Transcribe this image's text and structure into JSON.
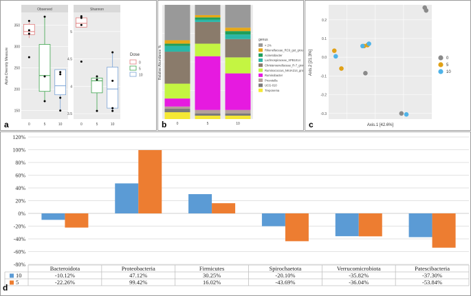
{
  "panels": {
    "a": "a",
    "b": "b",
    "c": "c",
    "d": "d"
  },
  "chart_data": [
    {
      "id": "a",
      "type": "box",
      "ylabel": "Alpha Diversity Measure",
      "legend": {
        "title": "Dose",
        "entries": [
          "0",
          "5",
          "10"
        ],
        "colors": [
          "#e07a7a",
          "#3aa34a",
          "#7aa3d6"
        ],
        "position": "right"
      },
      "facets": [
        {
          "title": "Observed",
          "ylim": [
            130,
            380
          ],
          "yticks": [
            150,
            200,
            250,
            300,
            350
          ],
          "categories": [
            "0",
            "5",
            "10"
          ],
          "boxes": [
            {
              "q1": 328,
              "median": 335,
              "q3": 352,
              "min": 320,
              "max": 358
            },
            {
              "q1": 195,
              "median": 232,
              "q3": 305,
              "min": 172,
              "max": 370
            },
            {
              "q1": 187,
              "median": 208,
              "q3": 246,
              "min": 152,
              "max": 246
            }
          ],
          "points": [
            [
              0,
              360
            ],
            [
              0,
              338
            ],
            [
              0,
              330
            ],
            [
              0,
              275
            ],
            [
              1,
              370
            ],
            [
              1,
              230
            ],
            [
              1,
              172
            ],
            [
              2,
              240
            ],
            [
              2,
              235
            ],
            [
              2,
              180
            ],
            [
              2,
              150
            ]
          ]
        },
        {
          "title": "Shannon",
          "ylim": [
            3.4,
            5.35
          ],
          "yticks": [
            3.5,
            4.0,
            4.5,
            5.0
          ],
          "categories": [
            "0",
            "5",
            "10"
          ],
          "boxes": [
            {
              "q1": 5.08,
              "median": 5.15,
              "q3": 5.25,
              "min": 5.08,
              "max": 5.28
            },
            {
              "q1": 3.88,
              "median": 4.1,
              "q3": 4.15,
              "min": 3.55,
              "max": 4.2
            },
            {
              "q1": 3.6,
              "median": 3.95,
              "q3": 4.35,
              "min": 3.55,
              "max": 4.62
            }
          ],
          "points": [
            [
              0,
              5.28
            ],
            [
              0,
              5.25
            ],
            [
              0,
              5.12
            ],
            [
              0,
              4.45
            ],
            [
              1,
              4.18
            ],
            [
              1,
              4.12
            ],
            [
              1,
              3.55
            ],
            [
              2,
              4.62
            ],
            [
              2,
              4.1
            ],
            [
              2,
              3.6
            ],
            [
              2,
              3.55
            ]
          ]
        }
      ]
    },
    {
      "id": "b",
      "type": "bar",
      "stacked": true,
      "ylabel": "Relative Abundance %",
      "ylim": [
        0,
        100
      ],
      "yticks": [
        0,
        25,
        50,
        75,
        100
      ],
      "categories": [
        "0",
        "5",
        "10"
      ],
      "legend_title": "genus",
      "series": [
        {
          "name": "Treponema",
          "color": "#f5e834",
          "values": [
            6,
            3,
            3
          ]
        },
        {
          "name": "UCG-010",
          "color": "#7a7a7a",
          "values": [
            3,
            2,
            2
          ]
        },
        {
          "name": "Prevotella",
          "color": "#b5a09a",
          "values": [
            2,
            3,
            3
          ]
        },
        {
          "name": "Ruminobacter",
          "color": "#e61ae0",
          "values": [
            7,
            47,
            32
          ]
        },
        {
          "name": "Ruminococcus_NK4A214_group",
          "color": "#c4f542",
          "values": [
            13,
            11,
            14
          ]
        },
        {
          "name": "Christensenellaceae_R-7_group",
          "color": "#8a7b6b",
          "values": [
            28,
            19,
            16
          ]
        },
        {
          "name": "Lachnospiraceae_XPB1014",
          "color": "#2bb7a7",
          "values": [
            5,
            2,
            4
          ]
        },
        {
          "name": "Acinetobacter",
          "color": "#1f9e5a",
          "values": [
            2,
            2,
            3
          ]
        },
        {
          "name": "Rikenellaceae_RC9_gut_group",
          "color": "#e6a817",
          "values": [
            3,
            2,
            3
          ]
        },
        {
          "name": "< 2%",
          "color": "#999999",
          "values": [
            31,
            9,
            20
          ]
        }
      ]
    },
    {
      "id": "c",
      "type": "scatter",
      "xlabel": "Axis.1   [42.6%]",
      "ylabel": "Axis.2   [21.3%]",
      "xlim": [
        -0.33,
        0.4
      ],
      "ylim": [
        -0.33,
        0.28
      ],
      "yticks": [
        0.2,
        0.1,
        0.0,
        -0.1,
        -0.2,
        -0.3
      ],
      "legend": {
        "entries": [
          "0",
          "5",
          "10"
        ],
        "colors": [
          "#8a8a8a",
          "#e0a117",
          "#4fb3e8"
        ],
        "position": "right"
      },
      "series": [
        {
          "name": "0",
          "color": "#8a8a8a",
          "points": [
            [
              0.35,
              0.265
            ],
            [
              0.36,
              0.25
            ],
            [
              -0.07,
              -0.085
            ],
            [
              0.185,
              -0.3
            ]
          ]
        },
        {
          "name": "5",
          "color": "#e0a117",
          "points": [
            [
              -0.29,
              0.035
            ],
            [
              -0.24,
              -0.06
            ],
            [
              -0.055,
              0.065
            ],
            [
              -0.08,
              0.06
            ]
          ]
        },
        {
          "name": "10",
          "color": "#4fb3e8",
          "points": [
            [
              -0.28,
              0.005
            ],
            [
              -0.09,
              0.06
            ],
            [
              -0.045,
              0.072
            ],
            [
              0.22,
              -0.305
            ]
          ]
        }
      ]
    },
    {
      "id": "d",
      "type": "bar",
      "ylim": [
        -80,
        120
      ],
      "yticks": [
        "120%",
        "100%",
        "80%",
        "60%",
        "40%",
        "20%",
        "0%",
        "-20%",
        "-40%",
        "-60%",
        "-80%"
      ],
      "categories": [
        "Bacteroidota",
        "Proteobacteria",
        "Firmicutes",
        "Spirochaetota",
        "Verrucomicrobiota",
        "Patescibacteria"
      ],
      "series": [
        {
          "name": "10",
          "color": "#5b9bd5",
          "values": [
            -10.12,
            47.12,
            30.25,
            -20.1,
            -35.82,
            -37.3
          ],
          "labels": [
            "-10.12%",
            "47.12%",
            "30.25%",
            "-20.10%",
            "-35.82%",
            "-37.30%"
          ]
        },
        {
          "name": "5",
          "color": "#ed7d31",
          "values": [
            -22.26,
            99.42,
            16.02,
            -43.69,
            -36.04,
            -53.84
          ],
          "labels": [
            "-22.26%",
            "99.42%",
            "16.02%",
            "-43.69%",
            "-36.04%",
            "-53.84%"
          ]
        }
      ]
    }
  ]
}
